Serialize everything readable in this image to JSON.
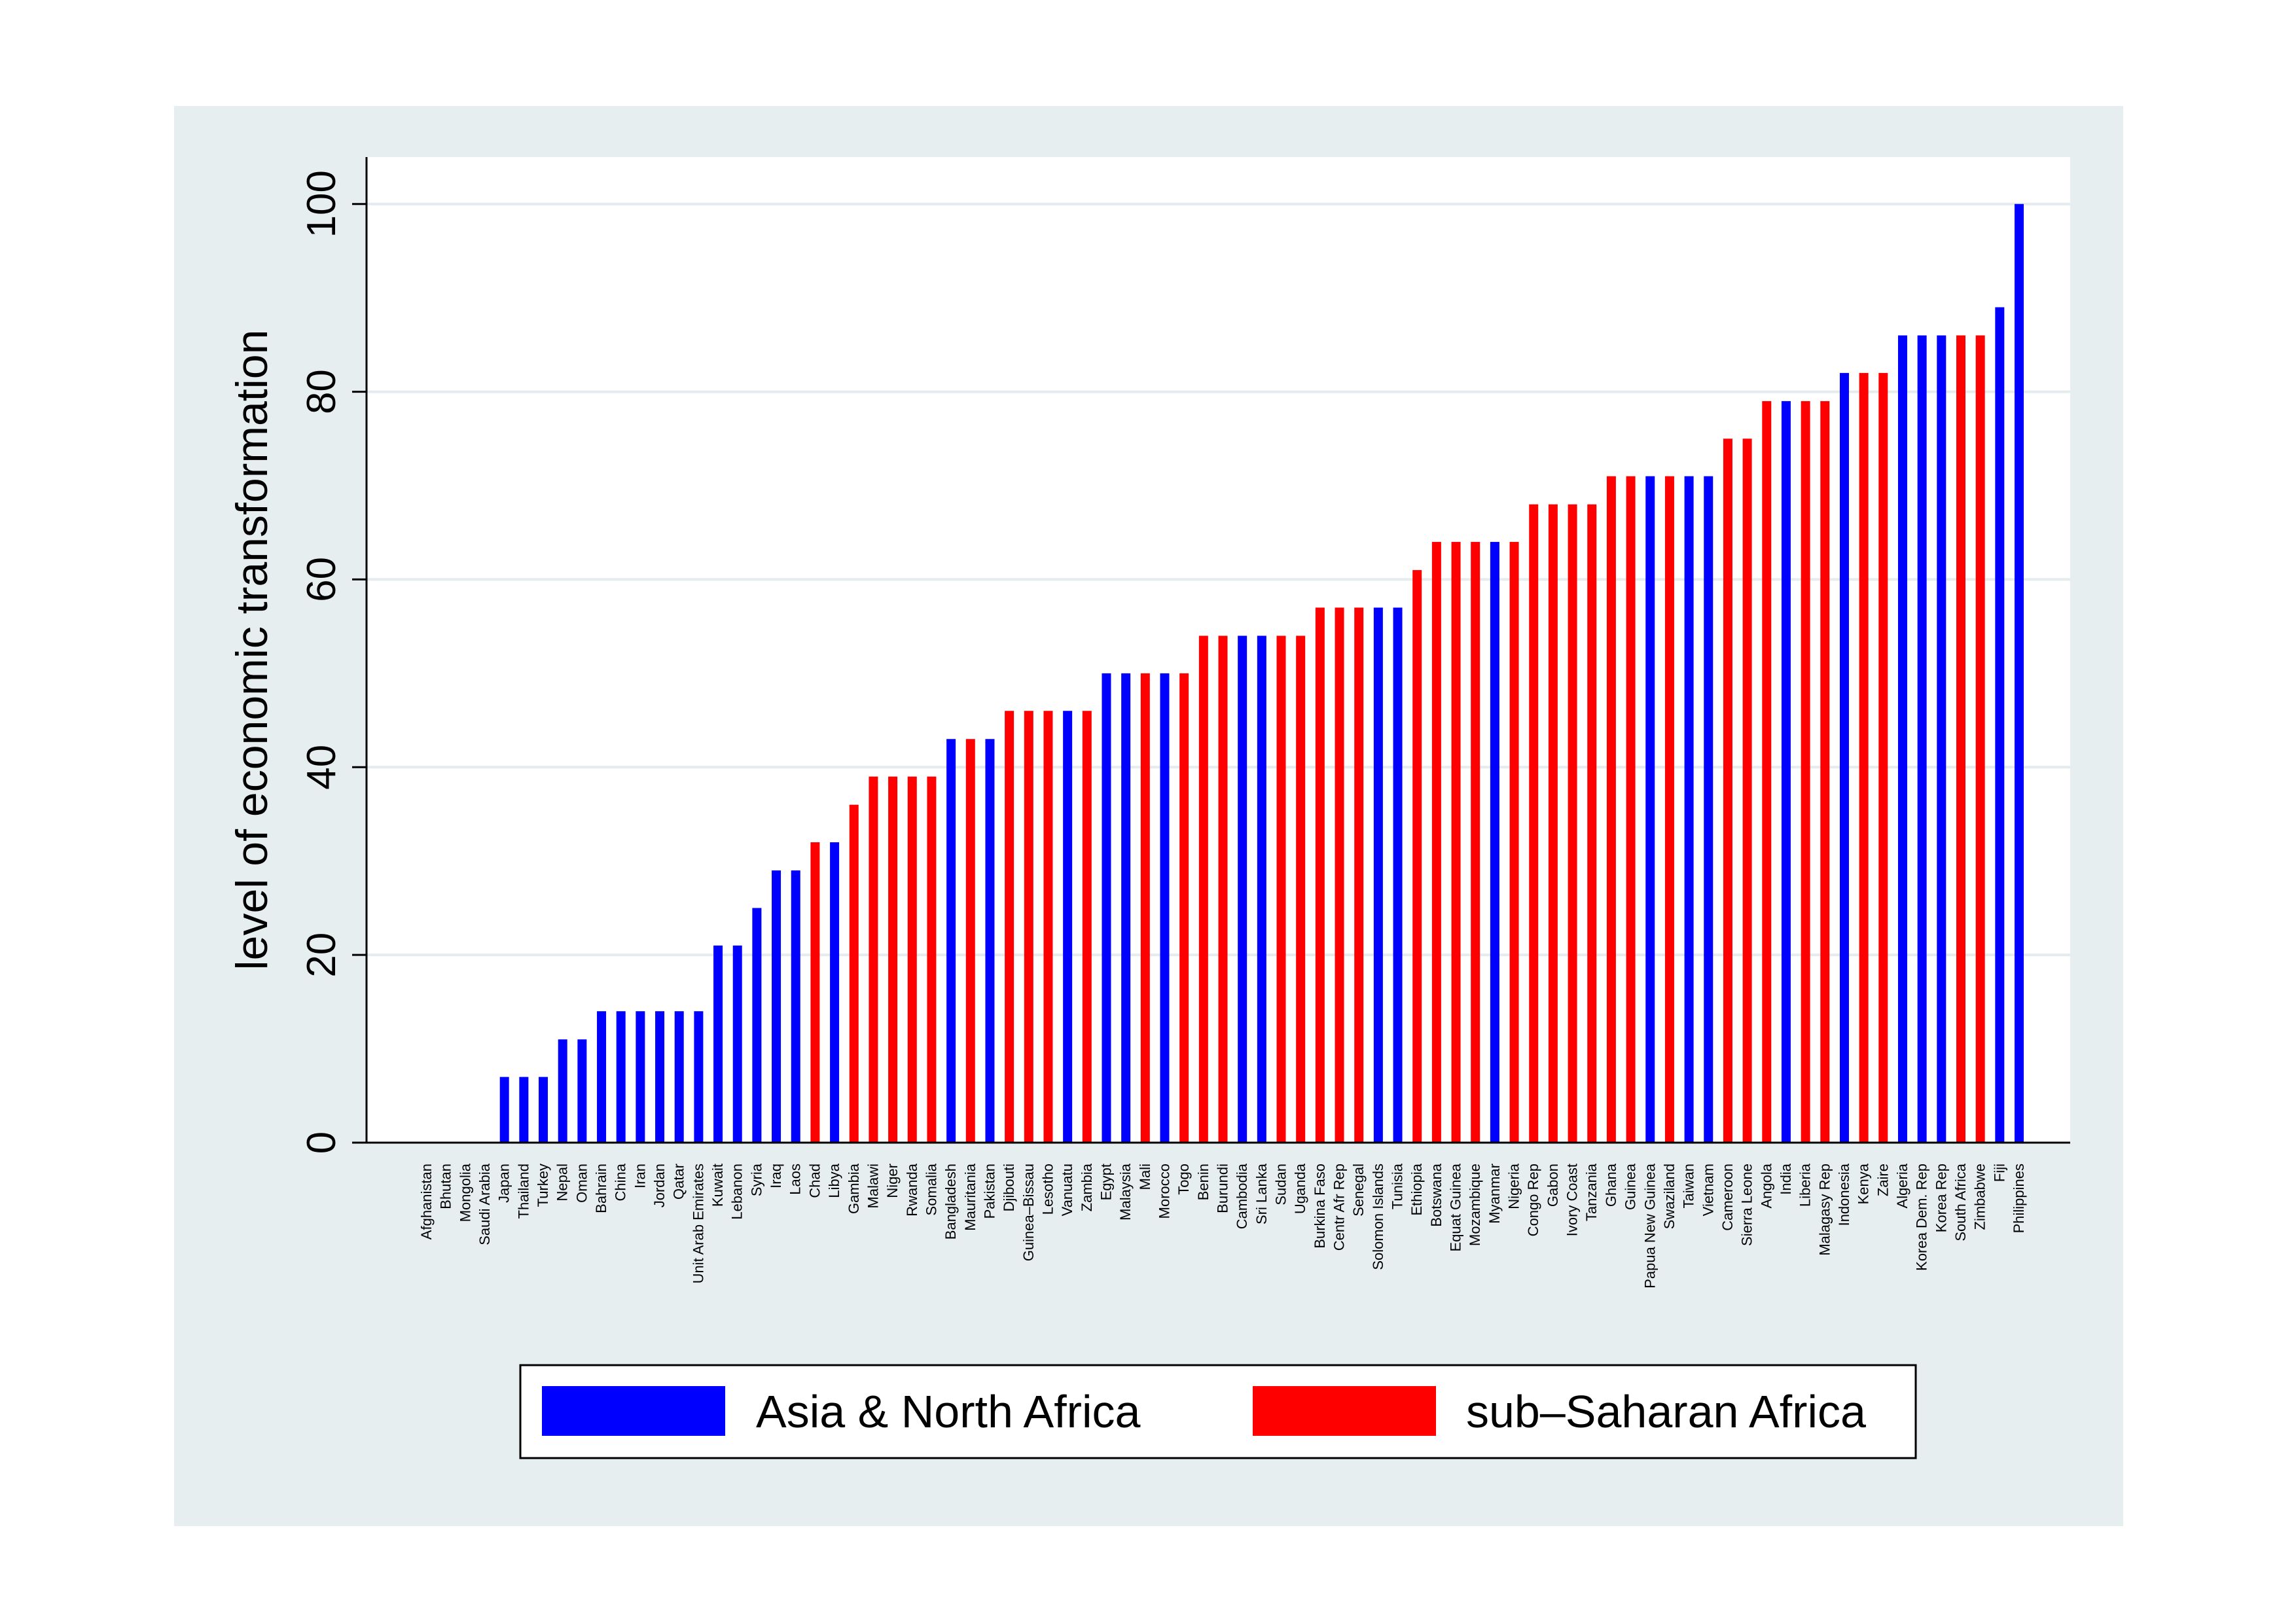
{
  "chart_data": {
    "type": "bar",
    "ylabel": "level of economic transformation",
    "ylim": [
      0,
      105
    ],
    "yticks": [
      0,
      20,
      40,
      60,
      80,
      100
    ],
    "grid": "horizontal",
    "legend_position": "bottom",
    "series_colors": {
      "Asia & North Africa": "#0000ff",
      "sub–Saharan Africa": "#ff0000"
    },
    "series": [
      {
        "name": "Asia & North Africa",
        "color": "#0000ff"
      },
      {
        "name": "sub–Saharan Africa",
        "color": "#ff0000"
      }
    ],
    "bars": [
      {
        "label": "Afghanistan",
        "value": 0,
        "series": "Asia & North Africa"
      },
      {
        "label": "Bhutan",
        "value": 0,
        "series": "Asia & North Africa"
      },
      {
        "label": "Mongolia",
        "value": 0,
        "series": "Asia & North Africa"
      },
      {
        "label": "Saudi Arabia",
        "value": 0,
        "series": "Asia & North Africa"
      },
      {
        "label": "Japan",
        "value": 7,
        "series": "Asia & North Africa"
      },
      {
        "label": "Thailand",
        "value": 7,
        "series": "Asia & North Africa"
      },
      {
        "label": "Turkey",
        "value": 7,
        "series": "Asia & North Africa"
      },
      {
        "label": "Nepal",
        "value": 11,
        "series": "Asia & North Africa"
      },
      {
        "label": "Oman",
        "value": 11,
        "series": "Asia & North Africa"
      },
      {
        "label": "Bahrain",
        "value": 14,
        "series": "Asia & North Africa"
      },
      {
        "label": "China",
        "value": 14,
        "series": "Asia & North Africa"
      },
      {
        "label": "Iran",
        "value": 14,
        "series": "Asia & North Africa"
      },
      {
        "label": "Jordan",
        "value": 14,
        "series": "Asia & North Africa"
      },
      {
        "label": "Qatar",
        "value": 14,
        "series": "Asia & North Africa"
      },
      {
        "label": "Unit Arab Emirates",
        "value": 14,
        "series": "Asia & North Africa"
      },
      {
        "label": "Kuwait",
        "value": 21,
        "series": "Asia & North Africa"
      },
      {
        "label": "Lebanon",
        "value": 21,
        "series": "Asia & North Africa"
      },
      {
        "label": "Syria",
        "value": 25,
        "series": "Asia & North Africa"
      },
      {
        "label": "Iraq",
        "value": 29,
        "series": "Asia & North Africa"
      },
      {
        "label": "Laos",
        "value": 29,
        "series": "Asia & North Africa"
      },
      {
        "label": "Chad",
        "value": 32,
        "series": "sub–Saharan Africa"
      },
      {
        "label": "Libya",
        "value": 32,
        "series": "Asia & North Africa"
      },
      {
        "label": "Gambia",
        "value": 36,
        "series": "sub–Saharan Africa"
      },
      {
        "label": "Malawi",
        "value": 39,
        "series": "sub–Saharan Africa"
      },
      {
        "label": "Niger",
        "value": 39,
        "series": "sub–Saharan Africa"
      },
      {
        "label": "Rwanda",
        "value": 39,
        "series": "sub–Saharan Africa"
      },
      {
        "label": "Somalia",
        "value": 39,
        "series": "sub–Saharan Africa"
      },
      {
        "label": "Bangladesh",
        "value": 43,
        "series": "Asia & North Africa"
      },
      {
        "label": "Mauritania",
        "value": 43,
        "series": "sub–Saharan Africa"
      },
      {
        "label": "Pakistan",
        "value": 43,
        "series": "Asia & North Africa"
      },
      {
        "label": "Djibouti",
        "value": 46,
        "series": "sub–Saharan Africa"
      },
      {
        "label": "Guinea–Bissau",
        "value": 46,
        "series": "sub–Saharan Africa"
      },
      {
        "label": "Lesotho",
        "value": 46,
        "series": "sub–Saharan Africa"
      },
      {
        "label": "Vanuatu",
        "value": 46,
        "series": "Asia & North Africa"
      },
      {
        "label": "Zambia",
        "value": 46,
        "series": "sub–Saharan Africa"
      },
      {
        "label": "Egypt",
        "value": 50,
        "series": "Asia & North Africa"
      },
      {
        "label": "Malaysia",
        "value": 50,
        "series": "Asia & North Africa"
      },
      {
        "label": "Mali",
        "value": 50,
        "series": "sub–Saharan Africa"
      },
      {
        "label": "Morocco",
        "value": 50,
        "series": "Asia & North Africa"
      },
      {
        "label": "Togo",
        "value": 50,
        "series": "sub–Saharan Africa"
      },
      {
        "label": "Benin",
        "value": 54,
        "series": "sub–Saharan Africa"
      },
      {
        "label": "Burundi",
        "value": 54,
        "series": "sub–Saharan Africa"
      },
      {
        "label": "Cambodia",
        "value": 54,
        "series": "Asia & North Africa"
      },
      {
        "label": "Sri Lanka",
        "value": 54,
        "series": "Asia & North Africa"
      },
      {
        "label": "Sudan",
        "value": 54,
        "series": "sub–Saharan Africa"
      },
      {
        "label": "Uganda",
        "value": 54,
        "series": "sub–Saharan Africa"
      },
      {
        "label": "Burkina Faso",
        "value": 57,
        "series": "sub–Saharan Africa"
      },
      {
        "label": "Centr Afr Rep",
        "value": 57,
        "series": "sub–Saharan Africa"
      },
      {
        "label": "Senegal",
        "value": 57,
        "series": "sub–Saharan Africa"
      },
      {
        "label": "Solomon Islands",
        "value": 57,
        "series": "Asia & North Africa"
      },
      {
        "label": "Tunisia",
        "value": 57,
        "series": "Asia & North Africa"
      },
      {
        "label": "Ethiopia",
        "value": 61,
        "series": "sub–Saharan Africa"
      },
      {
        "label": "Botswana",
        "value": 64,
        "series": "sub–Saharan Africa"
      },
      {
        "label": "Equat Guinea",
        "value": 64,
        "series": "sub–Saharan Africa"
      },
      {
        "label": "Mozambique",
        "value": 64,
        "series": "sub–Saharan Africa"
      },
      {
        "label": "Myanmar",
        "value": 64,
        "series": "Asia & North Africa"
      },
      {
        "label": "Nigeria",
        "value": 64,
        "series": "sub–Saharan Africa"
      },
      {
        "label": "Congo Rep",
        "value": 68,
        "series": "sub–Saharan Africa"
      },
      {
        "label": "Gabon",
        "value": 68,
        "series": "sub–Saharan Africa"
      },
      {
        "label": "Ivory Coast",
        "value": 68,
        "series": "sub–Saharan Africa"
      },
      {
        "label": "Tanzania",
        "value": 68,
        "series": "sub–Saharan Africa"
      },
      {
        "label": "Ghana",
        "value": 71,
        "series": "sub–Saharan Africa"
      },
      {
        "label": "Guinea",
        "value": 71,
        "series": "sub–Saharan Africa"
      },
      {
        "label": "Papua New Guinea",
        "value": 71,
        "series": "Asia & North Africa"
      },
      {
        "label": "Swaziland",
        "value": 71,
        "series": "sub–Saharan Africa"
      },
      {
        "label": "Taiwan",
        "value": 71,
        "series": "Asia & North Africa"
      },
      {
        "label": "Vietnam",
        "value": 71,
        "series": "Asia & North Africa"
      },
      {
        "label": "Cameroon",
        "value": 75,
        "series": "sub–Saharan Africa"
      },
      {
        "label": "Sierra Leone",
        "value": 75,
        "series": "sub–Saharan Africa"
      },
      {
        "label": "Angola",
        "value": 79,
        "series": "sub–Saharan Africa"
      },
      {
        "label": "India",
        "value": 79,
        "series": "Asia & North Africa"
      },
      {
        "label": "Liberia",
        "value": 79,
        "series": "sub–Saharan Africa"
      },
      {
        "label": "Malagasy Rep",
        "value": 79,
        "series": "sub–Saharan Africa"
      },
      {
        "label": "Indonesia",
        "value": 82,
        "series": "Asia & North Africa"
      },
      {
        "label": "Kenya",
        "value": 82,
        "series": "sub–Saharan Africa"
      },
      {
        "label": "Zaire",
        "value": 82,
        "series": "sub–Saharan Africa"
      },
      {
        "label": "Algeria",
        "value": 86,
        "series": "Asia & North Africa"
      },
      {
        "label": "Korea Dem. Rep",
        "value": 86,
        "series": "Asia & North Africa"
      },
      {
        "label": "Korea Rep",
        "value": 86,
        "series": "Asia & North Africa"
      },
      {
        "label": "South Africa",
        "value": 86,
        "series": "sub–Saharan Africa"
      },
      {
        "label": "Zimbabwe",
        "value": 86,
        "series": "sub–Saharan Africa"
      },
      {
        "label": "Fiji",
        "value": 89,
        "series": "Asia & North Africa"
      },
      {
        "label": "Philippines",
        "value": 100,
        "series": "Asia & North Africa"
      }
    ]
  }
}
